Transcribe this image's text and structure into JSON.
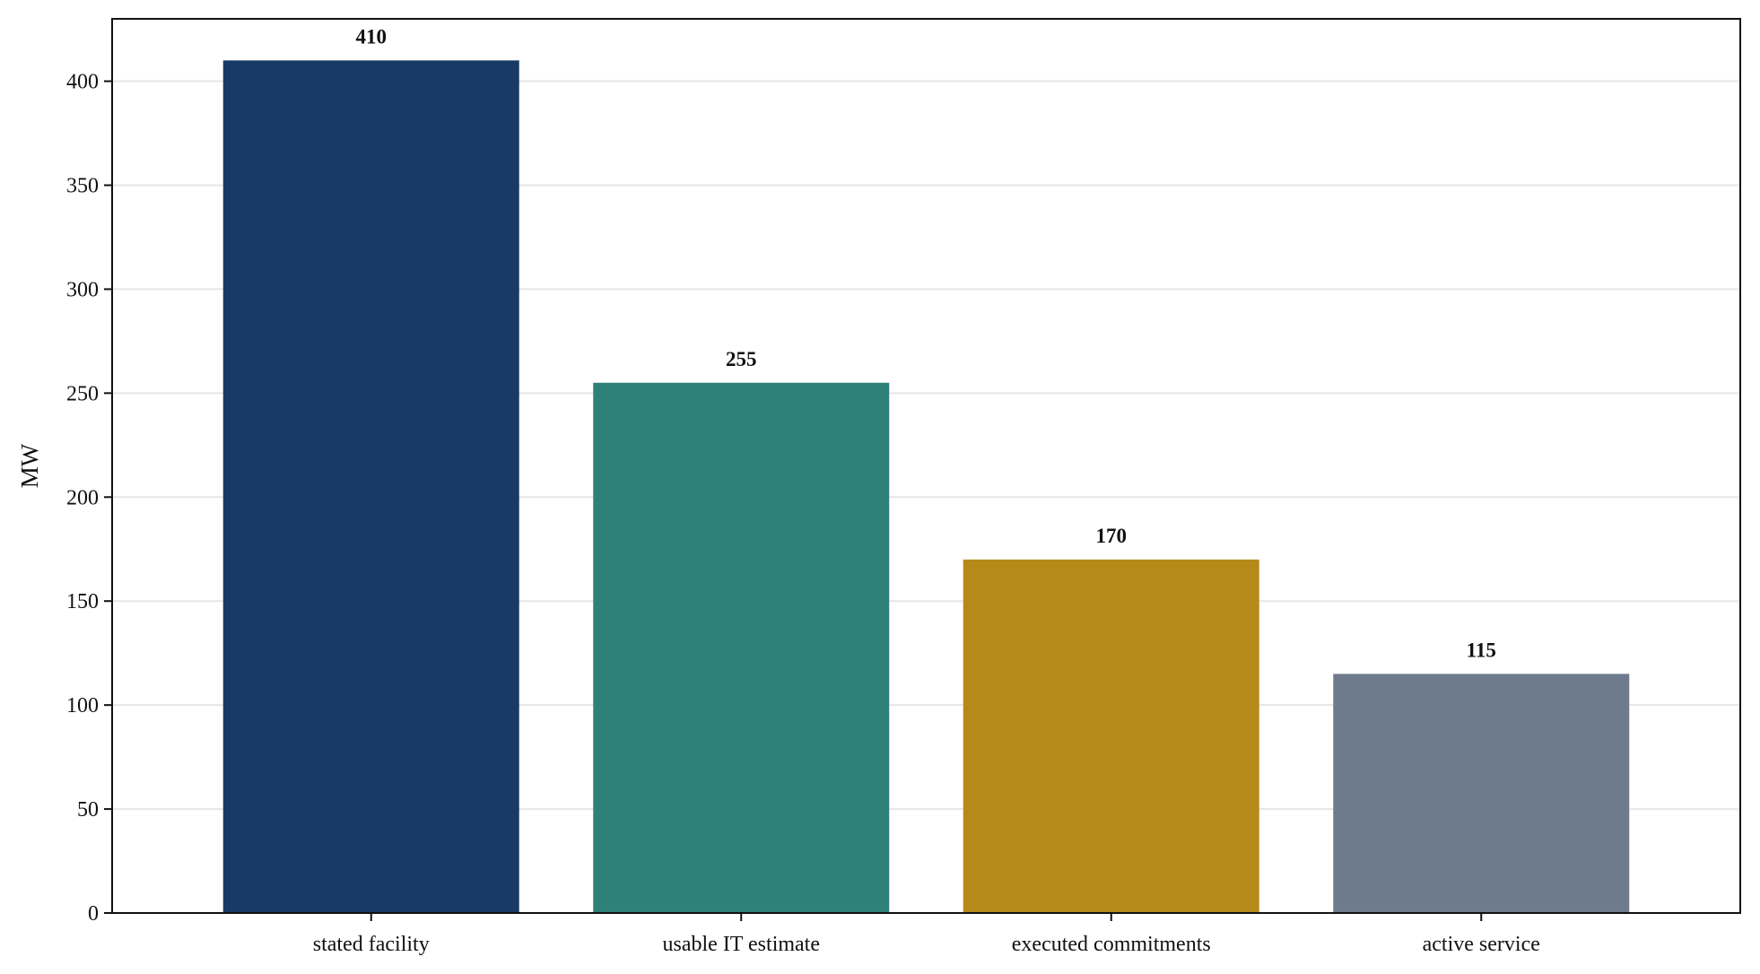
{
  "chart_data": {
    "type": "bar",
    "categories": [
      "stated facility",
      "usable IT estimate",
      "executed commitments",
      "active service"
    ],
    "values": [
      410,
      255,
      170,
      115
    ],
    "data_labels": [
      "410",
      "255",
      "170",
      "115"
    ],
    "colors": [
      "#183b66",
      "#2f8078",
      "#b58a19",
      "#6e7b8c"
    ],
    "title": "",
    "xlabel": "",
    "ylabel": "MW",
    "ylim": [
      0,
      430
    ],
    "yticks": [
      0,
      50,
      100,
      150,
      200,
      250,
      300,
      350,
      400
    ],
    "ytick_labels": [
      "0",
      "50",
      "100",
      "150",
      "200",
      "250",
      "300",
      "350",
      "400"
    ],
    "grid": "horizontal",
    "legend": "none"
  }
}
